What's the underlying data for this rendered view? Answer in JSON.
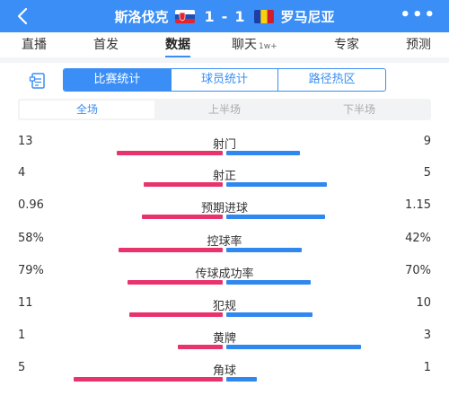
{
  "header": {
    "back_icon": "back-arrow-icon",
    "home_team": "斯洛伐克",
    "home_score": "1",
    "dash": "-",
    "away_score": "1",
    "away_team": "罗马尼亚",
    "more_label": "•••",
    "colors": {
      "bar": "#3a8ef6"
    }
  },
  "nav": {
    "tabs": [
      {
        "label": "直播"
      },
      {
        "label": "首发"
      },
      {
        "label": "数据"
      },
      {
        "label": "聊天",
        "badge": "1w+"
      },
      {
        "label": "专家"
      },
      {
        "label": "预测"
      }
    ],
    "active_index": 2
  },
  "stat_types": {
    "icon": "document-icon",
    "options": [
      "比赛统计",
      "球员统计",
      "路径热区"
    ],
    "active_index": 0
  },
  "halves": {
    "options": [
      "全场",
      "上半场",
      "下半场"
    ],
    "active_index": 0
  },
  "stats": [
    {
      "label": "射门",
      "home": "13",
      "away": "9",
      "home_frac": 0.59,
      "away_frac": 0.41
    },
    {
      "label": "射正",
      "home": "4",
      "away": "5",
      "home_frac": 0.44,
      "away_frac": 0.56
    },
    {
      "label": "预期进球",
      "home": "0.96",
      "away": "1.15",
      "home_frac": 0.45,
      "away_frac": 0.55
    },
    {
      "label": "控球率",
      "home": "58%",
      "away": "42%",
      "home_frac": 0.58,
      "away_frac": 0.42
    },
    {
      "label": "传球成功率",
      "home": "79%",
      "away": "70%",
      "home_frac": 0.53,
      "away_frac": 0.47
    },
    {
      "label": "犯规",
      "home": "11",
      "away": "10",
      "home_frac": 0.52,
      "away_frac": 0.48
    },
    {
      "label": "黄牌",
      "home": "1",
      "away": "3",
      "home_frac": 0.25,
      "away_frac": 0.75
    },
    {
      "label": "角球",
      "home": "5",
      "away": "1",
      "home_frac": 0.83,
      "away_frac": 0.17
    }
  ],
  "colors": {
    "home_bar": "#e8336d",
    "away_bar": "#2f88f0",
    "accent": "#3a8ef6"
  }
}
